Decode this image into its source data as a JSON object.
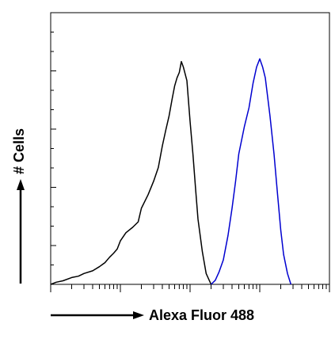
{
  "chart_data": {
    "type": "line",
    "title": "",
    "xlabel": "Alexa Fluor 488",
    "ylabel": "# Cells",
    "x_scale": "log",
    "xlim": [
      1,
      10000
    ],
    "ylim": [
      0,
      100
    ],
    "grid": false,
    "legend": "none",
    "series": [
      {
        "color": "#000000",
        "x": [
          1,
          1.2,
          1.5,
          2,
          2.5,
          3,
          4,
          5,
          6,
          7,
          8,
          9,
          10,
          12,
          15,
          18,
          20,
          25,
          30,
          35,
          40,
          45,
          50,
          55,
          60,
          65,
          70,
          75,
          80,
          90,
          100,
          110,
          120,
          130,
          150,
          170,
          200
        ],
        "y": [
          0,
          0.8,
          1.3,
          2.5,
          3,
          4,
          5,
          6.5,
          8,
          10,
          11.5,
          13,
          16,
          19,
          21,
          23,
          28,
          33,
          38,
          43,
          51,
          57,
          62,
          68,
          73,
          76,
          78,
          82,
          80,
          75,
          60,
          48,
          35,
          24,
          12,
          4,
          0
        ]
      },
      {
        "color": "#0000d0",
        "x": [
          200,
          230,
          260,
          300,
          350,
          400,
          450,
          500,
          600,
          700,
          800,
          900,
          1000,
          1100,
          1200,
          1400,
          1600,
          1800,
          2000,
          2200,
          2500,
          2800
        ],
        "y": [
          0,
          1.5,
          4.5,
          9,
          18,
          28,
          38,
          48,
          58,
          65,
          74,
          80,
          83,
          80,
          76,
          62,
          48,
          33,
          20,
          11,
          4,
          0
        ]
      }
    ]
  }
}
